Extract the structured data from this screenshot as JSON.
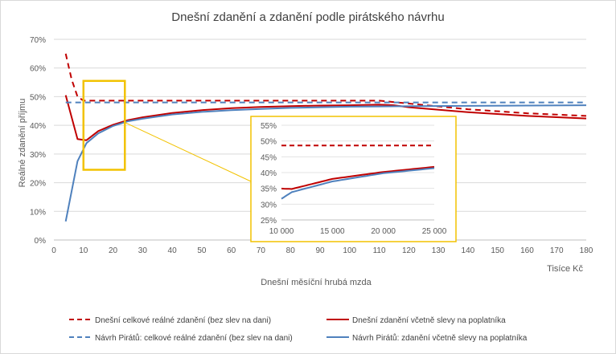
{
  "chart_data": {
    "type": "line",
    "title": "Dnešní zdanění a zdanění podle pirátského návrhu",
    "xlabel": "Dnešní měsíční hrubá mzda",
    "xunit": "Tisíce Kč",
    "ylabel": "Reálné zdanění příjmu",
    "xlim": [
      0,
      180
    ],
    "ylim": [
      0,
      70
    ],
    "xticks": [
      "0",
      "10",
      "20",
      "30",
      "40",
      "50",
      "60",
      "70",
      "80",
      "90",
      "100",
      "110",
      "120",
      "130",
      "140",
      "150",
      "160",
      "170",
      "180"
    ],
    "yticks": [
      "0%",
      "10%",
      "20%",
      "30%",
      "40%",
      "50%",
      "60%",
      "70%"
    ],
    "grid": "horizontal",
    "legend_position": "bottom",
    "series": [
      {
        "name": "Dnešní celkové reálné zdanění (bez slev na dani)",
        "color": "#c00000",
        "dash": "dashed",
        "x": [
          4,
          6,
          8,
          10,
          15,
          20,
          30,
          40,
          60,
          80,
          100,
          110,
          120,
          140,
          160,
          180
        ],
        "y": [
          65,
          56,
          50,
          48.6,
          48.6,
          48.6,
          48.6,
          48.6,
          48.6,
          48.6,
          48.6,
          48.6,
          47.6,
          45.6,
          44.2,
          43.3
        ]
      },
      {
        "name": "Dnešní zdanění včetně slevy na poplatníka",
        "color": "#c00000",
        "dash": "solid",
        "x": [
          4,
          8,
          11,
          15,
          20,
          25,
          30,
          40,
          50,
          60,
          70,
          80,
          90,
          100,
          110,
          115,
          120,
          140,
          160,
          180
        ],
        "y": [
          50.5,
          35.2,
          34.8,
          38,
          40.2,
          41.8,
          42.8,
          44.3,
          45.3,
          46,
          46.4,
          46.7,
          46.9,
          47,
          47.2,
          47,
          46.3,
          44.6,
          43.3,
          42.4
        ]
      },
      {
        "name": "Návrh Pirátů: celkové reálné zdanění (bez slev na dani)",
        "color": "#4f81bd",
        "dash": "dashed",
        "x": [
          4,
          180
        ],
        "y": [
          48,
          48
        ]
      },
      {
        "name": "Návrh Pirátů: zdanění včetně slevy na poplatníka",
        "color": "#4f81bd",
        "dash": "solid",
        "x": [
          4,
          8,
          11,
          15,
          20,
          25,
          30,
          40,
          50,
          60,
          70,
          80,
          90,
          100,
          110,
          120,
          140,
          160,
          180
        ],
        "y": [
          6.5,
          27.5,
          33.8,
          37.2,
          39.8,
          41.4,
          42.3,
          43.8,
          44.7,
          45.3,
          45.7,
          46.1,
          46.3,
          46.5,
          46.6,
          46.7,
          46.8,
          46.9,
          47
        ]
      }
    ],
    "inset": {
      "xlim": [
        10000,
        25000
      ],
      "ylim": [
        25,
        55
      ],
      "xticks": [
        "10 000",
        "15 000",
        "20 000",
        "25 000"
      ],
      "yticks": [
        "25%",
        "30%",
        "35%",
        "40%",
        "45%",
        "50%",
        "55%"
      ],
      "highlight_x": [
        10,
        24
      ],
      "highlight_y": [
        24.5,
        55.5
      ],
      "highlight_color": "#f2c200"
    }
  }
}
